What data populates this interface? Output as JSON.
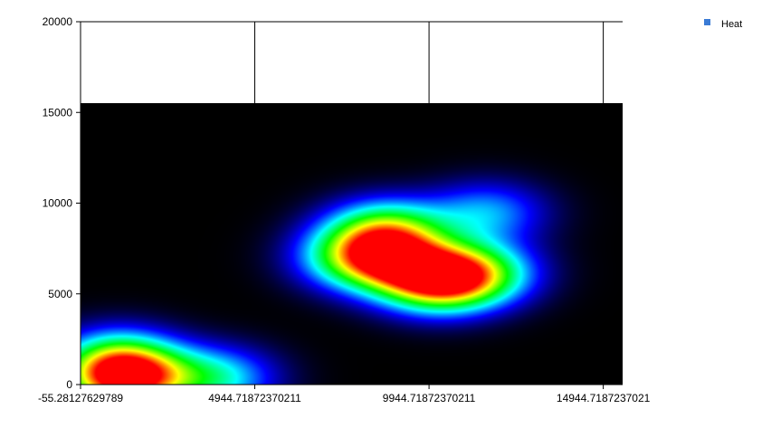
{
  "chart_data": {
    "type": "heatmap",
    "title": "",
    "xlabel": "",
    "ylabel": "",
    "xlim": [
      -55.28127629789,
      15500
    ],
    "ylim": [
      0,
      20000
    ],
    "x_ticks": [
      -55.28127629789,
      4944.71872370211,
      9944.71872370211,
      14944.7187237021
    ],
    "x_tick_labels": [
      "-55.28127629789",
      "4944.71872370211",
      "9944.71872370211",
      "14944.7187237021"
    ],
    "y_ticks": [
      0,
      5000,
      10000,
      15000,
      20000
    ],
    "y_tick_labels": [
      "0",
      "5000",
      "10000",
      "15000",
      "20000"
    ],
    "heat_extent": {
      "x": [
        -55.28127629789,
        15500
      ],
      "y": [
        0,
        15500
      ]
    },
    "grid": "vertical",
    "legend": {
      "position": "top-right",
      "entries": [
        {
          "name": "Heat",
          "color": "#3a7bd5"
        }
      ]
    },
    "colormap": [
      "#000000",
      "#0000ff",
      "#00ffff",
      "#00ff00",
      "#ffff00",
      "#ff0000"
    ],
    "hotspots": [
      {
        "x": 1200,
        "y": 400,
        "intensity": 1.0
      },
      {
        "x": 3800,
        "y": 380,
        "intensity": 0.42
      },
      {
        "x": 1000,
        "y": 1600,
        "intensity": 0.35
      },
      {
        "x": 8700,
        "y": 8500,
        "intensity": 0.62
      },
      {
        "x": 8900,
        "y": 6800,
        "intensity": 0.5
      },
      {
        "x": 10200,
        "y": 5700,
        "intensity": 0.82
      },
      {
        "x": 11300,
        "y": 6200,
        "intensity": 0.5
      },
      {
        "x": 7800,
        "y": 7000,
        "intensity": 0.45
      },
      {
        "x": 11600,
        "y": 9500,
        "intensity": 0.32
      }
    ]
  }
}
